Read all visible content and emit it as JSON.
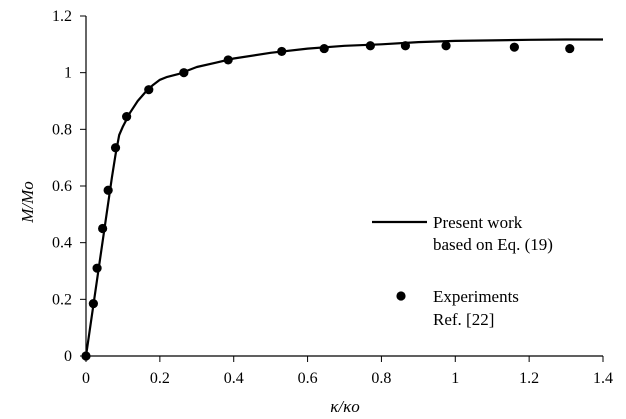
{
  "chart_data": {
    "type": "line",
    "xlabel": "κ/κo",
    "ylabel": "M/Mo",
    "xlim": [
      0,
      1.4
    ],
    "ylim": [
      0,
      1.2
    ],
    "xticks": [
      "0",
      "0.2",
      "0.4",
      "0.6",
      "0.8",
      "1",
      "1.2",
      "1.4"
    ],
    "yticks": [
      "0",
      "0.2",
      "0.4",
      "0.6",
      "0.8",
      "1",
      "1.2"
    ],
    "grid": false,
    "legend_position": "bottom-right",
    "series": [
      {
        "name": "Present work based on Eq. (19)",
        "legend_lines": [
          "Present work",
          "based on Eq. (19)"
        ],
        "style": "line",
        "color": "#000000",
        "x": [
          0,
          0.01,
          0.02,
          0.03,
          0.04,
          0.05,
          0.06,
          0.07,
          0.08,
          0.09,
          0.1,
          0.12,
          0.14,
          0.16,
          0.18,
          0.2,
          0.22,
          0.25,
          0.3,
          0.35,
          0.4,
          0.5,
          0.6,
          0.7,
          0.8,
          0.9,
          1.0,
          1.1,
          1.2,
          1.3,
          1.4
        ],
        "y": [
          0,
          0.09,
          0.18,
          0.27,
          0.36,
          0.45,
          0.54,
          0.63,
          0.71,
          0.78,
          0.81,
          0.86,
          0.9,
          0.93,
          0.955,
          0.975,
          0.985,
          0.995,
          1.02,
          1.035,
          1.05,
          1.07,
          1.085,
          1.095,
          1.1,
          1.108,
          1.112,
          1.114,
          1.116,
          1.117,
          1.117
        ]
      },
      {
        "name": "Experiments Ref. [22]",
        "legend_lines": [
          "Experiments",
          "Ref. [22]"
        ],
        "style": "scatter",
        "color": "#000000",
        "x": [
          0,
          0.02,
          0.03,
          0.045,
          0.06,
          0.08,
          0.11,
          0.17,
          0.265,
          0.385,
          0.53,
          0.645,
          0.77,
          0.865,
          0.975,
          1.16,
          1.31
        ],
        "y": [
          0,
          0.185,
          0.31,
          0.45,
          0.585,
          0.735,
          0.845,
          0.94,
          1.0,
          1.045,
          1.075,
          1.085,
          1.095,
          1.095,
          1.095,
          1.09,
          1.085
        ]
      }
    ]
  }
}
